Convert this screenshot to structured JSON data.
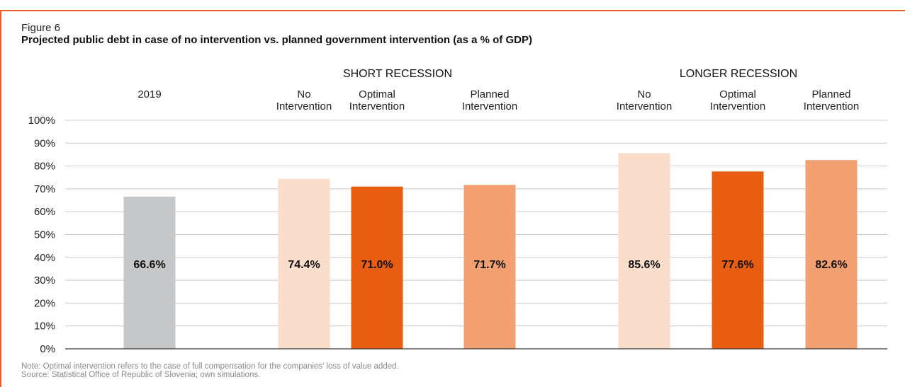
{
  "figure_label": "Figure 6",
  "title": "Projected public debt in case of no intervention vs. planned government intervention (as a % of GDP)",
  "notes": [
    "Note: Optimal intervention refers to the case of full compensation for the companies’ loss of value added.",
    "Source: Statistical Office of Republic of Slovenia; own simulations."
  ],
  "colors": {
    "frame": "#e8632a",
    "grid": "#c9c9c9",
    "axis": "#333333"
  },
  "chart_data": {
    "type": "bar",
    "groups": [
      {
        "name": "",
        "year_label": "2019",
        "bars": [
          {
            "label": "2019",
            "value": 66.6,
            "data_label": "66.6%",
            "color": "#c6c7c8"
          }
        ]
      },
      {
        "name": "SHORT RECESSION",
        "bars": [
          {
            "label": [
              "No",
              "Intervention"
            ],
            "value": 74.4,
            "data_label": "74.4%",
            "color": "#fadecb"
          },
          {
            "label": [
              "Optimal",
              "Intervention"
            ],
            "value": 71.0,
            "data_label": "71.0%",
            "color": "#e85d12"
          },
          {
            "label": [
              "Planned",
              "Intervention"
            ],
            "value": 71.7,
            "data_label": "71.7%",
            "color": "#f2a072"
          }
        ]
      },
      {
        "name": "LONGER RECESSION",
        "bars": [
          {
            "label": [
              "No",
              "Intervention"
            ],
            "value": 85.6,
            "data_label": "85.6%",
            "color": "#fadecb"
          },
          {
            "label": [
              "Optimal",
              "Intervention"
            ],
            "value": 77.6,
            "data_label": "77.6%",
            "color": "#e85d12"
          },
          {
            "label": [
              "Planned",
              "Intervention"
            ],
            "value": 82.6,
            "data_label": "82.6%",
            "color": "#f2a072"
          }
        ]
      }
    ],
    "ylim": [
      0,
      100
    ],
    "yticks": [
      "0%",
      "10%",
      "20%",
      "30%",
      "40%",
      "50%",
      "60%",
      "70%",
      "80%",
      "90%",
      "100%"
    ],
    "grid": true,
    "legend": "none"
  }
}
